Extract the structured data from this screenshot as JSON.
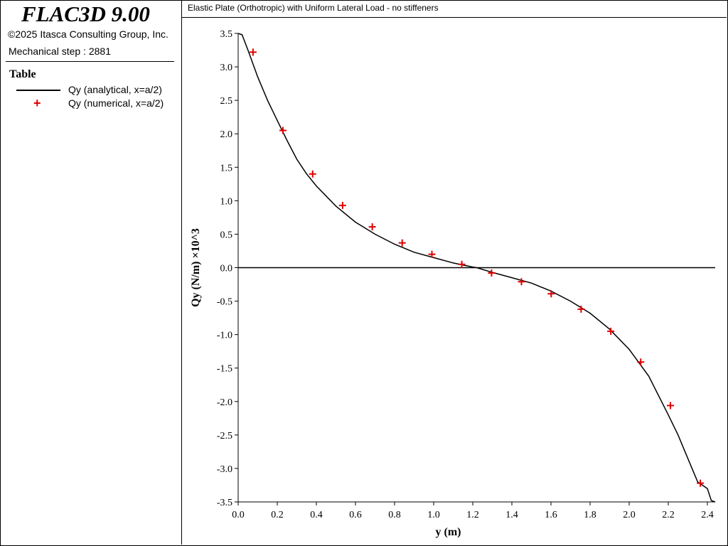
{
  "app": {
    "title": "FLAC3D 9.00",
    "copyright": "©2025 Itasca Consulting Group, Inc.",
    "step": "Mechanical step : 2881"
  },
  "legend": {
    "heading": "Table",
    "items": [
      {
        "label": "Qy (analytical, x=a/2)",
        "marker": "line",
        "color": "#000000"
      },
      {
        "label": "Qy (numerical, x=a/2)",
        "marker": "plus",
        "color": "#e00000"
      }
    ]
  },
  "chart_data": {
    "type": "line",
    "title": "Elastic Plate (Orthotropic) with Uniform Lateral Load - no stiffeners",
    "xlabel": "y (m)",
    "ylabel": "Qy (N/m) ×10^3",
    "xlim": [
      0.0,
      2.44
    ],
    "ylim": [
      -3.5,
      3.5
    ],
    "xticks": [
      "0.0",
      "0.2",
      "0.4",
      "0.6",
      "0.8",
      "1.0",
      "1.2",
      "1.4",
      "1.6",
      "1.8",
      "2.0",
      "2.2",
      "2.4"
    ],
    "yticks": [
      "3.5",
      "3.0",
      "2.5",
      "2.0",
      "1.5",
      "1.0",
      "0.5",
      "0.0",
      "-0.5",
      "-1.0",
      "-1.5",
      "-2.0",
      "-2.5",
      "-3.0",
      "-3.5"
    ],
    "grid": false,
    "zero_line": true,
    "series": [
      {
        "name": "Qy (analytical, x=a/2)",
        "style": "line",
        "color": "#000000",
        "x": [
          0.0,
          0.02,
          0.05,
          0.1,
          0.15,
          0.2,
          0.25,
          0.3,
          0.35,
          0.4,
          0.5,
          0.6,
          0.7,
          0.8,
          0.9,
          1.0,
          1.1,
          1.2,
          1.22,
          1.3,
          1.4,
          1.5,
          1.6,
          1.7,
          1.8,
          1.9,
          2.0,
          2.1,
          2.2,
          2.25,
          2.3,
          2.35,
          2.4,
          2.42,
          2.44
        ],
        "y": [
          3.5,
          3.48,
          3.25,
          2.85,
          2.5,
          2.2,
          1.9,
          1.62,
          1.4,
          1.22,
          0.92,
          0.68,
          0.5,
          0.35,
          0.23,
          0.15,
          0.07,
          0.01,
          0.0,
          -0.07,
          -0.15,
          -0.23,
          -0.35,
          -0.5,
          -0.68,
          -0.92,
          -1.22,
          -1.62,
          -2.2,
          -2.5,
          -2.85,
          -3.2,
          -3.3,
          -3.48,
          -3.5
        ]
      },
      {
        "name": "Qy (numerical, x=a/2)",
        "style": "plus",
        "color": "#e00000",
        "x": [
          0.076,
          0.229,
          0.381,
          0.534,
          0.686,
          0.839,
          0.991,
          1.144,
          1.296,
          1.449,
          1.601,
          1.754,
          1.906,
          2.059,
          2.211,
          2.364
        ],
        "y": [
          3.22,
          2.05,
          1.4,
          0.93,
          0.61,
          0.37,
          0.2,
          0.05,
          -0.08,
          -0.21,
          -0.39,
          -0.62,
          -0.95,
          -1.41,
          -2.06,
          -3.22
        ]
      }
    ]
  }
}
